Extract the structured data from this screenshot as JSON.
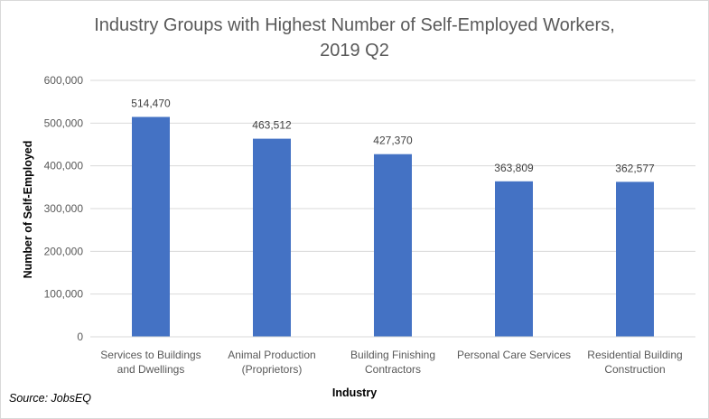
{
  "chart_data": {
    "type": "bar",
    "title": [
      "Industry Groups with Highest Number of Self-Employed Workers,",
      "2019 Q2"
    ],
    "xlabel": "Industry",
    "ylabel": "Number of Self-Employed",
    "categories": [
      [
        "Services to Buildings",
        "and Dwellings"
      ],
      [
        "Animal Production",
        "(Proprietors)"
      ],
      [
        "Building Finishing",
        "Contractors"
      ],
      [
        "Personal Care Services"
      ],
      [
        "Residential Building",
        "Construction"
      ]
    ],
    "values": [
      514470,
      463512,
      427370,
      363809,
      362577
    ],
    "data_labels": [
      "514,470",
      "463,512",
      "427,370",
      "363,809",
      "362,577"
    ],
    "ylim": [
      0,
      600000
    ],
    "yticks": [
      0,
      100000,
      200000,
      300000,
      400000,
      500000,
      600000
    ],
    "ytick_labels": [
      "0",
      "100,000",
      "200,000",
      "300,000",
      "400,000",
      "500,000",
      "600,000"
    ],
    "grid": true,
    "bar_color": "#4472c4",
    "grid_color": "#d9d9d9"
  },
  "source": "Source: JobsEQ"
}
